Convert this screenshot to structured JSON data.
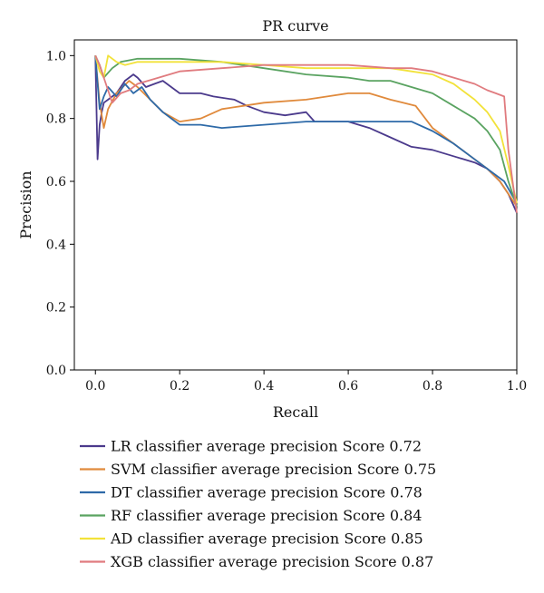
{
  "chart_data": {
    "type": "line",
    "title": "PR curve",
    "xlabel": "Recall",
    "ylabel": "Precision",
    "xlim": [
      -0.05,
      1.0
    ],
    "ylim": [
      0.0,
      1.05
    ],
    "xticks": [
      0.0,
      0.2,
      0.4,
      0.6,
      0.8,
      1.0
    ],
    "yticks": [
      0.0,
      0.2,
      0.4,
      0.6,
      0.8,
      1.0
    ],
    "tick_labels_x": [
      "0.0",
      "0.2",
      "0.4",
      "0.6",
      "0.8",
      "1.0"
    ],
    "tick_labels_y": [
      "0.0",
      "0.2",
      "0.4",
      "0.6",
      "0.8",
      "1.0"
    ],
    "grid": false,
    "legend_position": "below",
    "series": [
      {
        "name": "LR classifier average precision Score 0.72",
        "color": "#4b3a8c",
        "x": [
          0.0,
          0.005,
          0.01,
          0.015,
          0.02,
          0.03,
          0.05,
          0.07,
          0.09,
          0.1,
          0.12,
          0.14,
          0.16,
          0.2,
          0.25,
          0.28,
          0.33,
          0.36,
          0.4,
          0.45,
          0.5,
          0.52,
          0.55,
          0.6,
          0.65,
          0.7,
          0.75,
          0.8,
          0.85,
          0.9,
          0.93,
          0.96,
          0.98,
          1.0
        ],
        "y": [
          1.0,
          0.67,
          0.78,
          0.82,
          0.85,
          0.86,
          0.88,
          0.92,
          0.94,
          0.93,
          0.9,
          0.91,
          0.92,
          0.88,
          0.88,
          0.87,
          0.86,
          0.84,
          0.82,
          0.81,
          0.82,
          0.79,
          0.79,
          0.79,
          0.77,
          0.74,
          0.71,
          0.7,
          0.68,
          0.66,
          0.64,
          0.6,
          0.56,
          0.5
        ]
      },
      {
        "name": "SVM classifier average precision Score 0.75",
        "color": "#e08a3c",
        "x": [
          0.0,
          0.01,
          0.02,
          0.03,
          0.05,
          0.08,
          0.1,
          0.13,
          0.16,
          0.2,
          0.25,
          0.3,
          0.35,
          0.4,
          0.5,
          0.55,
          0.6,
          0.65,
          0.7,
          0.73,
          0.76,
          0.8,
          0.85,
          0.9,
          0.93,
          0.96,
          0.98,
          1.0
        ],
        "y": [
          1.0,
          0.85,
          0.77,
          0.83,
          0.88,
          0.92,
          0.9,
          0.86,
          0.82,
          0.79,
          0.8,
          0.83,
          0.84,
          0.85,
          0.86,
          0.87,
          0.88,
          0.88,
          0.86,
          0.85,
          0.84,
          0.77,
          0.72,
          0.67,
          0.64,
          0.6,
          0.56,
          0.52
        ]
      },
      {
        "name": "DT classifier average precision Score 0.78",
        "color": "#2e6aa8",
        "x": [
          0.0,
          0.01,
          0.02,
          0.03,
          0.05,
          0.07,
          0.09,
          0.11,
          0.13,
          0.16,
          0.2,
          0.25,
          0.3,
          0.4,
          0.5,
          0.55,
          0.6,
          0.65,
          0.7,
          0.75,
          0.8,
          0.85,
          0.9,
          0.94,
          0.97,
          1.0
        ],
        "y": [
          1.0,
          0.83,
          0.87,
          0.9,
          0.87,
          0.91,
          0.88,
          0.9,
          0.86,
          0.82,
          0.78,
          0.78,
          0.77,
          0.78,
          0.79,
          0.79,
          0.79,
          0.79,
          0.79,
          0.79,
          0.76,
          0.72,
          0.67,
          0.63,
          0.6,
          0.53
        ]
      },
      {
        "name": "RF classifier average precision Score 0.84",
        "color": "#5aa361",
        "x": [
          0.0,
          0.01,
          0.02,
          0.04,
          0.06,
          0.1,
          0.15,
          0.2,
          0.3,
          0.4,
          0.5,
          0.6,
          0.65,
          0.7,
          0.75,
          0.8,
          0.85,
          0.9,
          0.93,
          0.96,
          0.98,
          1.0
        ],
        "y": [
          1.0,
          0.97,
          0.93,
          0.96,
          0.98,
          0.99,
          0.99,
          0.99,
          0.98,
          0.96,
          0.94,
          0.93,
          0.92,
          0.92,
          0.9,
          0.88,
          0.84,
          0.8,
          0.76,
          0.7,
          0.6,
          0.52
        ]
      },
      {
        "name": "AD classifier average precision Score 0.85",
        "color": "#f2e23a",
        "x": [
          0.0,
          0.01,
          0.02,
          0.03,
          0.05,
          0.07,
          0.1,
          0.15,
          0.2,
          0.3,
          0.4,
          0.5,
          0.6,
          0.7,
          0.75,
          0.8,
          0.85,
          0.9,
          0.93,
          0.96,
          0.98,
          1.0
        ],
        "y": [
          1.0,
          0.95,
          0.93,
          1.0,
          0.98,
          0.97,
          0.98,
          0.98,
          0.98,
          0.98,
          0.97,
          0.96,
          0.96,
          0.96,
          0.95,
          0.94,
          0.91,
          0.86,
          0.82,
          0.76,
          0.65,
          0.53
        ]
      },
      {
        "name": "XGB classifier average precision Score 0.87",
        "color": "#e07b7f",
        "x": [
          0.0,
          0.01,
          0.02,
          0.04,
          0.06,
          0.08,
          0.1,
          0.15,
          0.2,
          0.3,
          0.4,
          0.5,
          0.6,
          0.7,
          0.75,
          0.8,
          0.85,
          0.9,
          0.93,
          0.95,
          0.97,
          0.98,
          1.0
        ],
        "y": [
          1.0,
          0.97,
          0.93,
          0.85,
          0.88,
          0.89,
          0.91,
          0.93,
          0.95,
          0.96,
          0.97,
          0.97,
          0.97,
          0.96,
          0.96,
          0.95,
          0.93,
          0.91,
          0.89,
          0.88,
          0.87,
          0.7,
          0.5
        ]
      }
    ]
  }
}
